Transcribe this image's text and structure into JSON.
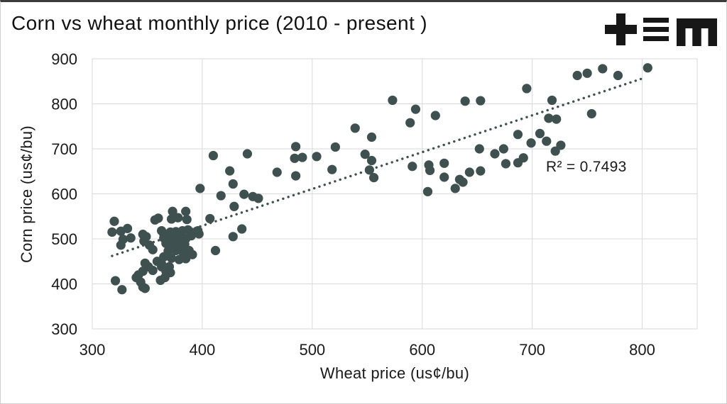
{
  "annotations": {
    "r_squared": "R² = 0.7493"
  },
  "logo": {
    "name": "tem-logo",
    "color": "#171717"
  },
  "chart_data": {
    "type": "scatter",
    "title": "Corn vs wheat monthly price (2010 - present )",
    "xlabel": "Wheat price (us¢/bu)",
    "ylabel": "Corn price (us¢/bu)",
    "xlim": [
      300,
      850
    ],
    "ylim": [
      300,
      900
    ],
    "xticks": [
      300,
      400,
      500,
      600,
      700,
      800
    ],
    "yticks": [
      300,
      400,
      500,
      600,
      700,
      800,
      900
    ],
    "grid": true,
    "legend": "none",
    "grid_color": "#d9d9d9",
    "point_color": "#3f5050",
    "tick_label_color": "#1a1a1a",
    "trendline": {
      "style": "dotted",
      "color": "#3f5050",
      "x1": 318,
      "y1": 462,
      "x2": 801,
      "y2": 857,
      "label": "R² = 0.7493"
    },
    "points": [
      [
        320,
        539
      ],
      [
        318,
        515
      ],
      [
        326,
        517
      ],
      [
        332,
        523
      ],
      [
        328,
        499
      ],
      [
        335,
        502
      ],
      [
        326,
        486
      ],
      [
        321,
        407
      ],
      [
        327,
        387
      ],
      [
        346,
        510
      ],
      [
        349,
        505
      ],
      [
        347,
        495
      ],
      [
        352,
        486
      ],
      [
        355,
        476
      ],
      [
        357,
        542
      ],
      [
        360,
        546
      ],
      [
        363,
        518
      ],
      [
        365,
        511
      ],
      [
        365,
        502
      ],
      [
        348,
        446
      ],
      [
        351,
        438
      ],
      [
        359,
        450
      ],
      [
        355,
        430
      ],
      [
        346,
        428
      ],
      [
        342,
        420
      ],
      [
        348,
        390
      ],
      [
        344,
        404
      ],
      [
        340,
        414
      ],
      [
        346,
        393
      ],
      [
        362,
        408
      ],
      [
        366,
        414
      ],
      [
        363,
        438
      ],
      [
        367,
        428
      ],
      [
        371,
        425
      ],
      [
        370,
        438
      ],
      [
        363,
        444
      ],
      [
        365,
        460
      ],
      [
        372,
        457
      ],
      [
        379,
        454
      ],
      [
        385,
        456
      ],
      [
        391,
        465
      ],
      [
        369,
        473
      ],
      [
        376,
        474
      ],
      [
        382,
        472
      ],
      [
        388,
        474
      ],
      [
        367,
        490
      ],
      [
        373,
        489
      ],
      [
        379,
        490
      ],
      [
        384,
        488
      ],
      [
        370,
        502
      ],
      [
        376,
        504
      ],
      [
        381,
        505
      ],
      [
        385,
        500
      ],
      [
        371,
        515
      ],
      [
        376,
        516
      ],
      [
        382,
        518
      ],
      [
        387,
        520
      ],
      [
        391,
        514
      ],
      [
        390,
        507
      ],
      [
        396,
        518
      ],
      [
        397,
        511
      ],
      [
        372,
        544
      ],
      [
        378,
        547
      ],
      [
        386,
        543
      ],
      [
        373,
        561
      ],
      [
        385,
        561
      ],
      [
        407,
        545
      ],
      [
        412,
        474
      ],
      [
        428,
        505
      ],
      [
        436,
        522
      ],
      [
        429,
        572
      ],
      [
        417,
        596
      ],
      [
        398,
        612
      ],
      [
        428,
        622
      ],
      [
        438,
        599
      ],
      [
        446,
        594
      ],
      [
        451,
        590
      ],
      [
        425,
        651
      ],
      [
        410,
        685
      ],
      [
        441,
        689
      ],
      [
        468,
        648
      ],
      [
        485,
        640
      ],
      [
        484,
        679
      ],
      [
        491,
        681
      ],
      [
        485,
        705
      ],
      [
        504,
        683
      ],
      [
        521,
        704
      ],
      [
        518,
        654
      ],
      [
        539,
        746
      ],
      [
        548,
        688
      ],
      [
        554,
        674
      ],
      [
        552,
        653
      ],
      [
        556,
        636
      ],
      [
        554,
        726
      ],
      [
        573,
        808
      ],
      [
        594,
        788
      ],
      [
        589,
        758
      ],
      [
        612,
        774
      ],
      [
        591,
        661
      ],
      [
        606,
        664
      ],
      [
        607,
        652
      ],
      [
        620,
        668
      ],
      [
        620,
        637
      ],
      [
        605,
        605
      ],
      [
        630,
        612
      ],
      [
        634,
        632
      ],
      [
        637,
        626
      ],
      [
        643,
        648
      ],
      [
        653,
        651
      ],
      [
        652,
        700
      ],
      [
        666,
        689
      ],
      [
        674,
        700
      ],
      [
        676,
        667
      ],
      [
        687,
        732
      ],
      [
        687,
        669
      ],
      [
        692,
        680
      ],
      [
        699,
        713
      ],
      [
        639,
        806
      ],
      [
        653,
        807
      ],
      [
        695,
        834
      ],
      [
        707,
        734
      ],
      [
        713,
        717
      ],
      [
        721,
        695
      ],
      [
        726,
        708
      ],
      [
        715,
        768
      ],
      [
        722,
        766
      ],
      [
        754,
        778
      ],
      [
        718,
        808
      ],
      [
        741,
        863
      ],
      [
        750,
        868
      ],
      [
        764,
        878
      ],
      [
        778,
        863
      ],
      [
        805,
        880
      ]
    ]
  }
}
